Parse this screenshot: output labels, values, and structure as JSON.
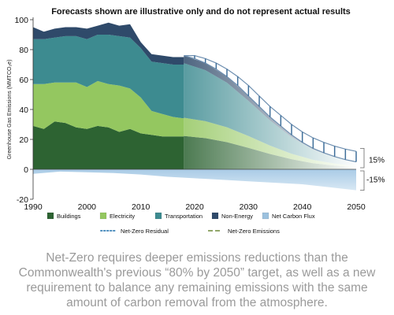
{
  "title": "Forecasts shown are illustrative only and do not represent actual results",
  "caption": "Net-Zero requires deeper emissions reductions than the Commonwealth's previous “80% by 2050” target, as well as a new requirement to balance any remaining emissions with the same amount of carbon removal from the atmosphere.",
  "chart_data": {
    "type": "area",
    "ylabel": "Greenhouse Gas Emissions (MMTCO₂e)",
    "xlim": [
      1990,
      2050
    ],
    "ylim": [
      -20,
      100
    ],
    "x_ticks": [
      "1990",
      "2000",
      "2010",
      "2020",
      "2030",
      "2040",
      "2050"
    ],
    "y_ticks": [
      "-20",
      "0",
      "20",
      "40",
      "60",
      "80",
      "100"
    ],
    "grid": false,
    "legend_position": "bottom",
    "annotations": [
      {
        "text": "15%",
        "x": 2050,
        "y": 8
      },
      {
        "text": "-15%",
        "x": 2050,
        "y": -8
      }
    ],
    "colors": {
      "buildings": "#2d6332",
      "electricity": "#94c760",
      "transportation": "#3d8b90",
      "non_energy": "#2f4a6a",
      "net_carbon_flux": "#9cc1de",
      "net_zero_residual": "#4f8fbf",
      "net_zero_emissions": "#6e8a3a"
    },
    "series": [
      {
        "name": "Buildings",
        "x": [
          1990,
          1992,
          1994,
          1996,
          1998,
          2000,
          2002,
          2004,
          2006,
          2008,
          2010,
          2012,
          2014,
          2016,
          2018
        ],
        "values": [
          29,
          27,
          32,
          31,
          28,
          27,
          29,
          28,
          25,
          27,
          24,
          23,
          22,
          22,
          22
        ]
      },
      {
        "name": "Electricity",
        "x": [
          1990,
          1992,
          1994,
          1996,
          1998,
          2000,
          2002,
          2004,
          2006,
          2008,
          2010,
          2012,
          2014,
          2016,
          2018
        ],
        "values": [
          28,
          30,
          26,
          27,
          30,
          28,
          30,
          29,
          31,
          27,
          24,
          16,
          15,
          13,
          12
        ]
      },
      {
        "name": "Transportation",
        "x": [
          1990,
          1992,
          1994,
          1996,
          1998,
          2000,
          2002,
          2004,
          2006,
          2008,
          2010,
          2012,
          2014,
          2016,
          2018
        ],
        "values": [
          30,
          30,
          30,
          31,
          31,
          32,
          31,
          33,
          33,
          34,
          33,
          33,
          34,
          35,
          36
        ]
      },
      {
        "name": "Non-Energy",
        "x": [
          1990,
          1992,
          1994,
          1996,
          1998,
          2000,
          2002,
          2004,
          2006,
          2008,
          2010,
          2012,
          2014,
          2016,
          2018
        ],
        "values": [
          8,
          5,
          6,
          6,
          6,
          7,
          6,
          8,
          7,
          9,
          4,
          5,
          5,
          5,
          5
        ]
      },
      {
        "name": "Net Carbon Flux",
        "x": [
          1990,
          1995,
          2000,
          2005,
          2010,
          2015,
          2020,
          2025,
          2030,
          2035,
          2040,
          2045,
          2050
        ],
        "values": [
          -3,
          -1.5,
          -2,
          -2.5,
          -3.5,
          -5,
          -6,
          -7,
          -8,
          -9,
          -10,
          -12,
          -14
        ]
      },
      {
        "name": "Net-Zero Residual",
        "x": [
          2018,
          2020,
          2022,
          2024,
          2026,
          2028,
          2030,
          2032,
          2034,
          2036,
          2038,
          2040,
          2042,
          2044,
          2046,
          2048,
          2050
        ],
        "values": [
          76,
          74,
          71,
          67,
          62,
          56,
          49,
          42,
          35,
          29,
          23,
          18,
          14,
          11,
          8.5,
          6.5,
          5
        ]
      },
      {
        "name": "Net-Zero Emissions",
        "x": [
          2018,
          2020,
          2022,
          2024,
          2026,
          2028,
          2030,
          2032,
          2034,
          2036,
          2038,
          2040,
          2042,
          2044,
          2046,
          2048,
          2050
        ],
        "values": [
          76,
          76,
          74,
          71,
          67,
          62,
          56,
          49,
          42,
          36,
          30,
          25,
          21,
          18,
          15.5,
          13.5,
          12
        ]
      }
    ]
  }
}
